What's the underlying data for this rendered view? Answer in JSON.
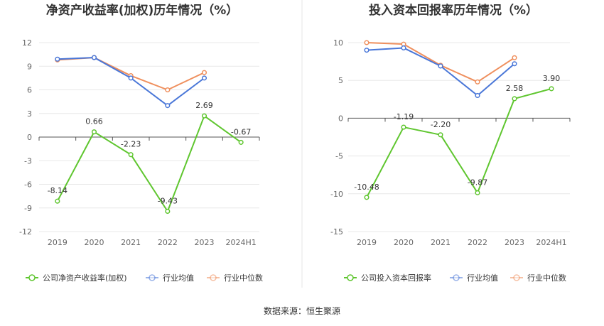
{
  "source": "数据来源：恒生聚源",
  "legend_symbols": {
    "company": "circle-line",
    "industry_avg": "circle-line",
    "industry_median": "circle-line"
  },
  "chart_data": [
    {
      "type": "line",
      "title": "净资产收益率(加权)历年情况（%）",
      "categories": [
        "2019",
        "2020",
        "2021",
        "2022",
        "2023",
        "2024H1"
      ],
      "ylim": [
        -12,
        12
      ],
      "yticks": [
        12,
        9,
        6,
        3,
        0,
        -3,
        -6,
        -9,
        -12
      ],
      "grid": true,
      "legend": "bottom",
      "series": [
        {
          "name": "公司净资产收益率(加权)",
          "color": "#5fc62f",
          "values": [
            -8.14,
            0.66,
            -2.23,
            -9.43,
            2.69,
            -0.67
          ],
          "labels": [
            "-8.14",
            "0.66",
            "-2.23",
            "-9.43",
            "2.69",
            "-0.67"
          ]
        },
        {
          "name": "行业均值",
          "color": "#4a77d8",
          "values": [
            9.9,
            10.1,
            7.5,
            4.0,
            7.5,
            null
          ]
        },
        {
          "name": "行业中位数",
          "color": "#ef8f5d",
          "values": [
            9.8,
            10.1,
            7.8,
            6.0,
            8.2,
            null
          ]
        }
      ]
    },
    {
      "type": "line",
      "title": "投入资本回报率历年情况（%）",
      "categories": [
        "2019",
        "2020",
        "2021",
        "2022",
        "2023",
        "2024H1"
      ],
      "ylim": [
        -15,
        10
      ],
      "yticks": [
        10,
        5,
        0,
        -5,
        -10,
        -15
      ],
      "grid": true,
      "legend": "bottom",
      "series": [
        {
          "name": "公司投入资本回报率",
          "color": "#5fc62f",
          "values": [
            -10.48,
            -1.19,
            -2.2,
            -9.87,
            2.58,
            3.9
          ],
          "labels": [
            "-10.48",
            "-1.19",
            "-2.20",
            "-9.87",
            "2.58",
            "3.90"
          ]
        },
        {
          "name": "行业均值",
          "color": "#4a77d8",
          "values": [
            9.0,
            9.3,
            6.9,
            3.0,
            7.2,
            null
          ]
        },
        {
          "name": "行业中位数",
          "color": "#ef8f5d",
          "values": [
            10.0,
            9.8,
            7.0,
            4.8,
            8.0,
            null
          ]
        }
      ]
    }
  ]
}
